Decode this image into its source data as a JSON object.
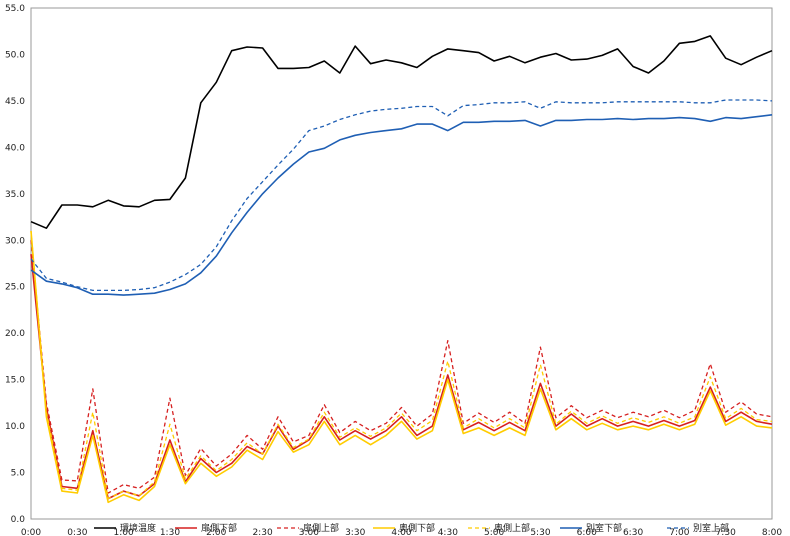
{
  "chart_data": {
    "type": "line",
    "title": "",
    "xlabel": "",
    "ylabel": "",
    "ylim": [
      0,
      55
    ],
    "yticks": [
      "0.0",
      "5.0",
      "10.0",
      "15.0",
      "20.0",
      "25.0",
      "30.0",
      "35.0",
      "40.0",
      "45.0",
      "50.0",
      "55.0"
    ],
    "xticks": [
      "0:00",
      "0:30",
      "1:00",
      "1:30",
      "2:00",
      "2:30",
      "3:00",
      "3:30",
      "4:00",
      "4:30",
      "5:00",
      "5:30",
      "6:00",
      "6:30",
      "7:00",
      "7:30",
      "8:00"
    ],
    "x": [
      "0:00",
      "0:10",
      "0:20",
      "0:30",
      "0:40",
      "0:50",
      "1:00",
      "1:10",
      "1:20",
      "1:30",
      "1:40",
      "1:50",
      "2:00",
      "2:10",
      "2:20",
      "2:30",
      "2:40",
      "2:50",
      "3:00",
      "3:10",
      "3:20",
      "3:30",
      "3:40",
      "3:50",
      "4:00",
      "4:10",
      "4:20",
      "4:30",
      "4:40",
      "4:50",
      "5:00",
      "5:10",
      "5:20",
      "5:30",
      "5:40",
      "5:50",
      "6:00",
      "6:10",
      "6:20",
      "6:30",
      "6:40",
      "6:50",
      "7:00",
      "7:10",
      "7:20",
      "7:30",
      "7:40",
      "7:50",
      "8:00"
    ],
    "legend_position": "bottom",
    "grid": false,
    "series": [
      {
        "name": "環境温度",
        "color": "#000000",
        "dash": "solid",
        "values": [
          32.0,
          31.3,
          33.8,
          33.8,
          33.6,
          34.3,
          33.7,
          33.6,
          34.3,
          34.4,
          36.7,
          44.8,
          47.0,
          50.4,
          50.8,
          50.7,
          48.5,
          48.5,
          48.6,
          49.3,
          48.0,
          50.9,
          49.0,
          49.4,
          49.1,
          48.6,
          49.8,
          50.6,
          50.4,
          50.2,
          49.3,
          49.8,
          49.1,
          49.7,
          50.1,
          49.4,
          49.5,
          49.9,
          50.6,
          48.7,
          48.0,
          49.3,
          51.2,
          51.4,
          52.0,
          49.6,
          48.9,
          49.7,
          50.4
        ]
      },
      {
        "name": "扉側下部",
        "color": "#d62020",
        "dash": "solid",
        "values": [
          28.5,
          12.0,
          3.5,
          3.3,
          9.5,
          2.2,
          3.0,
          2.5,
          3.8,
          8.5,
          4.0,
          6.5,
          5.0,
          6.0,
          7.8,
          7.0,
          10.0,
          7.5,
          8.5,
          11.0,
          8.5,
          9.5,
          8.6,
          9.5,
          11.0,
          9.0,
          10.0,
          15.5,
          9.6,
          10.4,
          9.5,
          10.4,
          9.5,
          14.6,
          10.0,
          11.3,
          10.0,
          10.8,
          10.0,
          10.5,
          10.0,
          10.6,
          10.0,
          10.6,
          14.2,
          10.5,
          11.5,
          10.5,
          10.2
        ]
      },
      {
        "name": "扉側上部",
        "color": "#d62020",
        "dash": "dashed",
        "values": [
          30.0,
          12.5,
          4.2,
          4.1,
          14.0,
          2.8,
          3.7,
          3.3,
          4.5,
          13.0,
          4.7,
          7.6,
          5.7,
          7.0,
          9.0,
          7.5,
          11.0,
          8.3,
          9.0,
          12.3,
          9.3,
          10.5,
          9.5,
          10.3,
          12.0,
          10.0,
          11.3,
          19.2,
          10.3,
          11.4,
          10.4,
          11.5,
          10.3,
          18.5,
          10.9,
          12.2,
          10.9,
          11.7,
          10.9,
          11.5,
          11.0,
          11.7,
          10.9,
          11.7,
          16.7,
          11.5,
          12.6,
          11.3,
          11.0
        ]
      },
      {
        "name": "奥側下部",
        "color": "#ffcc00",
        "dash": "solid",
        "values": [
          31.0,
          11.0,
          3.0,
          2.8,
          9.0,
          1.8,
          2.6,
          2.0,
          3.5,
          8.0,
          3.8,
          6.0,
          4.6,
          5.6,
          7.4,
          6.4,
          9.4,
          7.2,
          8.0,
          10.5,
          8.0,
          9.0,
          8.0,
          9.0,
          10.5,
          8.6,
          9.5,
          15.0,
          9.2,
          9.8,
          9.0,
          9.8,
          9.0,
          14.0,
          9.6,
          10.8,
          9.6,
          10.3,
          9.6,
          10.0,
          9.6,
          10.2,
          9.6,
          10.2,
          13.8,
          10.1,
          11.0,
          10.0,
          9.8
        ]
      },
      {
        "name": "奥側上部",
        "color": "#ffcc00",
        "dash": "dashed",
        "values": [
          31.0,
          11.5,
          3.3,
          3.1,
          11.5,
          2.2,
          3.0,
          2.5,
          4.0,
          10.2,
          4.3,
          6.8,
          5.2,
          6.4,
          8.2,
          7.0,
          10.2,
          7.7,
          8.6,
          11.5,
          8.8,
          9.8,
          8.9,
          9.8,
          11.4,
          9.5,
          10.6,
          17.0,
          9.8,
          10.8,
          9.8,
          10.8,
          9.8,
          16.6,
          10.2,
          11.6,
          10.3,
          11.1,
          10.3,
          10.9,
          10.4,
          11.0,
          10.3,
          11.0,
          15.3,
          10.8,
          11.9,
          10.7,
          10.5
        ]
      },
      {
        "name": "別室下部",
        "color": "#1f5fb4",
        "dash": "solid",
        "values": [
          26.8,
          25.6,
          25.3,
          24.9,
          24.2,
          24.2,
          24.1,
          24.2,
          24.3,
          24.7,
          25.3,
          26.5,
          28.3,
          30.8,
          33.0,
          35.0,
          36.7,
          38.2,
          39.5,
          39.9,
          40.8,
          41.3,
          41.6,
          41.8,
          42.0,
          42.5,
          42.5,
          41.8,
          42.7,
          42.7,
          42.8,
          42.8,
          42.9,
          42.3,
          42.9,
          42.9,
          43.0,
          43.0,
          43.1,
          43.0,
          43.1,
          43.1,
          43.2,
          43.1,
          42.8,
          43.2,
          43.1,
          43.3,
          43.5
        ]
      },
      {
        "name": "別室上部",
        "color": "#1f5fb4",
        "dash": "dashed",
        "values": [
          28.0,
          25.9,
          25.5,
          25.0,
          24.6,
          24.6,
          24.6,
          24.7,
          24.9,
          25.5,
          26.3,
          27.4,
          29.3,
          32.1,
          34.5,
          36.3,
          38.1,
          39.8,
          41.8,
          42.3,
          43.0,
          43.5,
          43.9,
          44.1,
          44.2,
          44.4,
          44.4,
          43.4,
          44.5,
          44.6,
          44.8,
          44.8,
          44.9,
          44.2,
          44.9,
          44.8,
          44.8,
          44.8,
          44.9,
          44.9,
          44.9,
          44.9,
          44.9,
          44.8,
          44.8,
          45.1,
          45.1,
          45.1,
          45.0
        ]
      }
    ]
  }
}
